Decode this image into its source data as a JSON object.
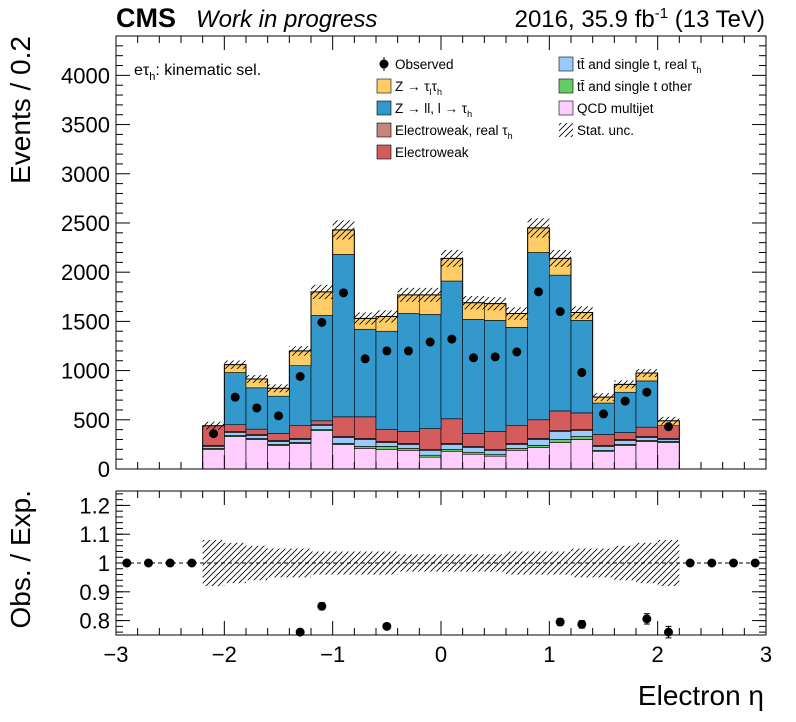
{
  "header": {
    "experiment": "CMS",
    "status": "Work in progress",
    "lumi_main": "2016, 35.9 fb",
    "lumi_sup": "-1",
    "lumi_energy": " (13 TeV)"
  },
  "main_panel": {
    "channel_prefix": "eτ",
    "channel_sub": "h",
    "channel_suffix": ": kinematic sel."
  },
  "colors": {
    "qcd": "#fdcdfd",
    "tt_other": "#66cc66",
    "tt_real": "#9bcaff",
    "ewk": "#d55c5c",
    "ewk_real": "#c78679",
    "zll": "#3399cc",
    "ztt": "#ffcc66",
    "data": "#000000",
    "hatch": "#000000"
  },
  "legend": [
    {
      "key": "data",
      "pre": "Observed",
      "sub": "",
      "post": ""
    },
    {
      "key": "ztt",
      "pre": "Z → τ",
      "sub": "l",
      "mid": "τ",
      "sub2": "h",
      "post": ""
    },
    {
      "key": "zll",
      "pre": "Z → ll, l → τ",
      "sub": "h",
      "post": ""
    },
    {
      "key": "ewk_real",
      "pre": "Electroweak, real τ",
      "sub": "h",
      "post": ""
    },
    {
      "key": "ewk",
      "pre": "Electroweak",
      "sub": "",
      "post": ""
    },
    {
      "key": "tt_real",
      "pre": "tt̄ and single t, real τ",
      "sub": "h",
      "post": ""
    },
    {
      "key": "tt_other",
      "pre": "tt̄ and single t other",
      "sub": "",
      "post": ""
    },
    {
      "key": "qcd",
      "pre": "QCD multijet",
      "sub": "",
      "post": ""
    },
    {
      "key": "hatch",
      "pre": "Stat. unc.",
      "sub": "",
      "post": ""
    }
  ],
  "chart_data": [
    {
      "type": "bar",
      "subtype": "stacked-histogram",
      "xlabel": "Electron η",
      "ylabel": "Events / 0.2",
      "xlim": [
        -3,
        3
      ],
      "ylim": [
        0,
        4400
      ],
      "yticks": [
        0,
        500,
        1000,
        1500,
        2000,
        2500,
        3000,
        3500,
        4000
      ],
      "xticks": [
        -3,
        -2,
        -1,
        0,
        1,
        2,
        3
      ],
      "bin_edges": [
        -2.2,
        -2.0,
        -1.8,
        -1.6,
        -1.4,
        -1.2,
        -1.0,
        -0.8,
        -0.6,
        -0.4,
        -0.2,
        0.0,
        0.2,
        0.4,
        0.6,
        0.8,
        1.0,
        1.2,
        1.4,
        1.6,
        1.8,
        2.0,
        2.2
      ],
      "series": [
        {
          "name": "QCD multijet",
          "key": "qcd",
          "values": [
            200,
            330,
            300,
            240,
            260,
            390,
            250,
            210,
            200,
            190,
            120,
            180,
            150,
            130,
            190,
            220,
            270,
            300,
            180,
            240,
            280,
            270
          ]
        },
        {
          "name": "tt̄ and single t other",
          "key": "tt_other",
          "values": [
            10,
            10,
            10,
            10,
            10,
            10,
            10,
            20,
            30,
            20,
            20,
            20,
            20,
            20,
            20,
            20,
            30,
            30,
            10,
            10,
            10,
            10
          ]
        },
        {
          "name": "tt̄ and single t, real τh",
          "key": "tt_real",
          "values": [
            20,
            30,
            30,
            30,
            30,
            40,
            60,
            70,
            40,
            40,
            50,
            50,
            50,
            40,
            40,
            60,
            80,
            60,
            40,
            40,
            30,
            20
          ]
        },
        {
          "name": "Electroweak, real τh",
          "key": "ewk_real",
          "values": [
            10,
            10,
            10,
            10,
            10,
            10,
            10,
            10,
            10,
            10,
            10,
            10,
            10,
            10,
            10,
            10,
            10,
            10,
            10,
            10,
            10,
            10
          ]
        },
        {
          "name": "Electroweak",
          "key": "ewk",
          "values": [
            200,
            70,
            55,
            70,
            130,
            40,
            200,
            220,
            120,
            120,
            210,
            250,
            130,
            180,
            180,
            190,
            200,
            170,
            110,
            70,
            95,
            130
          ]
        },
        {
          "name": "Z → ll, l → τh",
          "key": "zll",
          "values": [
            0,
            530,
            420,
            380,
            610,
            1070,
            1650,
            890,
            1000,
            1200,
            1160,
            1400,
            1160,
            1130,
            1000,
            1700,
            1380,
            940,
            320,
            410,
            470,
            0
          ]
        },
        {
          "name": "Z → τlτh",
          "key": "ztt",
          "values": [
            0,
            80,
            90,
            80,
            150,
            240,
            250,
            110,
            150,
            190,
            200,
            230,
            170,
            170,
            140,
            250,
            170,
            80,
            60,
            80,
            80,
            50
          ]
        }
      ],
      "observed": [
        360,
        730,
        620,
        540,
        940,
        1490,
        1790,
        1120,
        1200,
        1200,
        1290,
        1320,
        1130,
        1140,
        1190,
        1800,
        1600,
        980,
        560,
        690,
        780,
        430
      ]
    },
    {
      "type": "scatter",
      "subtype": "ratio",
      "xlabel": "Electron η",
      "ylabel": "Obs. / Exp.",
      "xlim": [
        -3,
        3
      ],
      "ylim": [
        0.75,
        1.25
      ],
      "yticks": [
        0.8,
        0.9,
        1,
        1.1,
        1.2
      ],
      "ytick_labels": [
        "0.8",
        "0.9",
        "1",
        "1.1",
        "1.2"
      ],
      "xtick_labels": [
        "−3",
        "−2",
        "−1",
        "0",
        "1",
        "2",
        "3"
      ],
      "stat_unc_band": {
        "x_range": [
          -2.2,
          2.2
        ],
        "lo": [
          0.92,
          0.93,
          0.94,
          0.95,
          0.95,
          0.96,
          0.96,
          0.96,
          0.96,
          0.97,
          0.97,
          0.97,
          0.97,
          0.97,
          0.96,
          0.96,
          0.96,
          0.95,
          0.95,
          0.94,
          0.93,
          0.92
        ],
        "hi": [
          1.08,
          1.07,
          1.06,
          1.05,
          1.05,
          1.04,
          1.04,
          1.04,
          1.04,
          1.03,
          1.03,
          1.03,
          1.03,
          1.03,
          1.04,
          1.04,
          1.04,
          1.05,
          1.05,
          1.06,
          1.07,
          1.08
        ]
      },
      "points": [
        {
          "x": -2.9,
          "y": 1.0,
          "err": 0
        },
        {
          "x": -2.7,
          "y": 1.0,
          "err": 0
        },
        {
          "x": -2.5,
          "y": 1.0,
          "err": 0
        },
        {
          "x": -2.3,
          "y": 1.0,
          "err": 0
        },
        {
          "x": -1.3,
          "y": 0.76,
          "err": 0.01
        },
        {
          "x": -1.1,
          "y": 0.85,
          "err": 0.012
        },
        {
          "x": -0.5,
          "y": 0.78,
          "err": 0.01
        },
        {
          "x": 1.1,
          "y": 0.795,
          "err": 0.012
        },
        {
          "x": 1.3,
          "y": 0.787,
          "err": 0.013
        },
        {
          "x": 1.9,
          "y": 0.806,
          "err": 0.018
        },
        {
          "x": 2.1,
          "y": 0.76,
          "err": 0.02
        },
        {
          "x": 2.3,
          "y": 1.0,
          "err": 0
        },
        {
          "x": 2.5,
          "y": 1.0,
          "err": 0
        },
        {
          "x": 2.7,
          "y": 1.0,
          "err": 0
        },
        {
          "x": 2.9,
          "y": 1.0,
          "err": 0
        }
      ]
    }
  ]
}
